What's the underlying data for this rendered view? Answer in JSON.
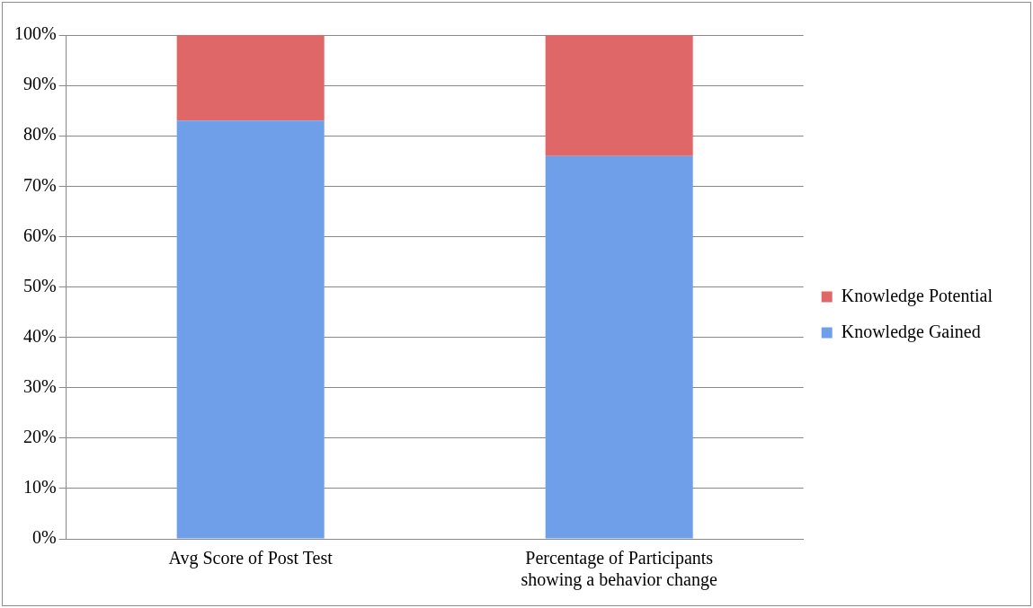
{
  "chart_data": {
    "type": "bar",
    "stacked": true,
    "categories": [
      "Avg Score of Post Test",
      "Percentage of Participants showing a behavior change"
    ],
    "series": [
      {
        "name": "Knowledge Gained",
        "color": "#6f9fe8",
        "values": [
          83,
          76
        ]
      },
      {
        "name": "Knowledge Potential",
        "color": "#e06767",
        "values": [
          17,
          24
        ]
      }
    ],
    "ylim": [
      0,
      100
    ],
    "yticks": [
      {
        "value": 0,
        "label": "0%"
      },
      {
        "value": 10,
        "label": "10%"
      },
      {
        "value": 20,
        "label": "20%"
      },
      {
        "value": 30,
        "label": "30%"
      },
      {
        "value": 40,
        "label": "40%"
      },
      {
        "value": 50,
        "label": "50%"
      },
      {
        "value": 60,
        "label": "60%"
      },
      {
        "value": 70,
        "label": "70%"
      },
      {
        "value": 80,
        "label": "80%"
      },
      {
        "value": 90,
        "label": "90%"
      },
      {
        "value": 100,
        "label": "100%"
      }
    ],
    "grid": "y",
    "legend": "right"
  }
}
